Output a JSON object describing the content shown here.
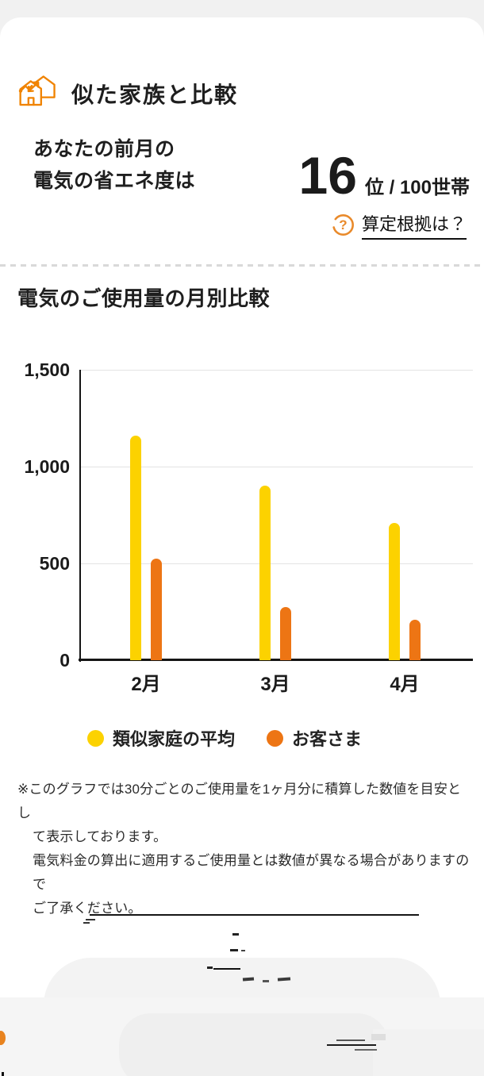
{
  "page": {
    "background": "#f1f1f1",
    "card_background": "#ffffff"
  },
  "header": {
    "title": "似た家族と比較",
    "icon": "compare-houses-icon",
    "icon_color": "#f08300"
  },
  "summary": {
    "line1": "あなたの前月の",
    "line2": "電気の省エネ度は",
    "rank_value": "16",
    "rank_unit": "位 / 100世帯",
    "basis_link": "算定根拠は？",
    "help_icon": "question-circle-icon",
    "accent_color": "#e98a2b"
  },
  "section": {
    "title": "電気のご使用量の月別比較"
  },
  "chart_data": {
    "type": "bar",
    "categories": [
      "2月",
      "3月",
      "4月"
    ],
    "series": [
      {
        "name": "類似家庭の平均",
        "color": "#fcd200",
        "values": [
          1160,
          900,
          710
        ]
      },
      {
        "name": "お客さま",
        "color": "#ed7514",
        "values": [
          525,
          275,
          210
        ]
      }
    ],
    "title": "電気のご使用量の月別比較",
    "xlabel": "",
    "ylabel": "",
    "ylim": [
      0,
      1500
    ],
    "yticks": [
      0,
      500,
      1000,
      1500
    ],
    "ytick_labels": [
      "0",
      "500",
      "1,000",
      "1,500"
    ],
    "grid": true,
    "legend_position": "bottom"
  },
  "footnote": {
    "lines": [
      "※このグラフでは30分ごとのご使用量を1ヶ月分に積算した数値を目安とし",
      "て表示しております。",
      "電気料金の算出に適用するご使用量とは数値が異なる場合がありますので",
      "ご了承ください。"
    ]
  }
}
